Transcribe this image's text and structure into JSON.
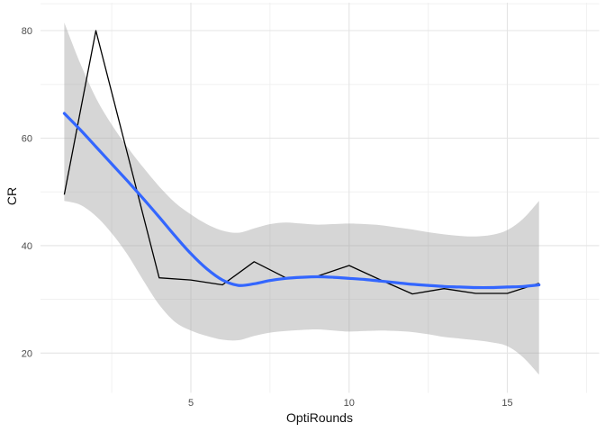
{
  "chart_data": {
    "type": "line",
    "title": "",
    "xlabel": "OptiRounds",
    "ylabel": "CR",
    "x": [
      1,
      2,
      3,
      4,
      5,
      6,
      7,
      8,
      9,
      10,
      11,
      12,
      13,
      14,
      15,
      16
    ],
    "series": [
      {
        "name": "observed-line",
        "color": "#000000",
        "width": 1.3,
        "smooth": false,
        "values": [
          49.5,
          80,
          57,
          34,
          33.6,
          32.7,
          37,
          34,
          34.3,
          36.3,
          33.6,
          31,
          32,
          31.1,
          31.1,
          33
        ]
      },
      {
        "name": "loess-smooth-line",
        "color": "#3366FF",
        "width": 3.2,
        "smooth": true,
        "points": [
          [
            1,
            64.6
          ],
          [
            1.5,
            61.6
          ],
          [
            2,
            58.4
          ],
          [
            2.5,
            55.2
          ],
          [
            3,
            52.0
          ],
          [
            3.5,
            48.7
          ],
          [
            4,
            45.3
          ],
          [
            4.5,
            41.8
          ],
          [
            5,
            38.5
          ],
          [
            5.5,
            35.7
          ],
          [
            6,
            33.6
          ],
          [
            6.5,
            32.6
          ],
          [
            7,
            32.9
          ],
          [
            7.5,
            33.5
          ],
          [
            8,
            33.9
          ],
          [
            8.5,
            34.1
          ],
          [
            9,
            34.2
          ],
          [
            9.5,
            34.1
          ],
          [
            10,
            33.9
          ],
          [
            10.5,
            33.7
          ],
          [
            11,
            33.4
          ],
          [
            11.5,
            33.1
          ],
          [
            12,
            32.8
          ],
          [
            12.5,
            32.6
          ],
          [
            13,
            32.4
          ],
          [
            13.5,
            32.3
          ],
          [
            14,
            32.2
          ],
          [
            14.5,
            32.2
          ],
          [
            15,
            32.3
          ],
          [
            15.5,
            32.4
          ],
          [
            16,
            32.7
          ]
        ]
      }
    ],
    "ribbon": {
      "name": "confidence-band",
      "fill": "#999999",
      "opacity": 0.4,
      "upper": [
        [
          1,
          81.5
        ],
        [
          1.5,
          74.0
        ],
        [
          2,
          67.5
        ],
        [
          2.5,
          62.5
        ],
        [
          3,
          58.3
        ],
        [
          3.5,
          54.5
        ],
        [
          4,
          51.0
        ],
        [
          4.5,
          48.0
        ],
        [
          5,
          45.8
        ],
        [
          5.5,
          44.0
        ],
        [
          6,
          42.8
        ],
        [
          6.5,
          42.4
        ],
        [
          7,
          43.2
        ],
        [
          7.5,
          44.0
        ],
        [
          8,
          44.3
        ],
        [
          8.5,
          44.1
        ],
        [
          9,
          43.9
        ],
        [
          9.5,
          44.0
        ],
        [
          10,
          44.1
        ],
        [
          10.5,
          44.0
        ],
        [
          11,
          43.8
        ],
        [
          11.5,
          43.4
        ],
        [
          12,
          43.0
        ],
        [
          12.5,
          42.5
        ],
        [
          13,
          42.1
        ],
        [
          13.5,
          41.8
        ],
        [
          14,
          41.7
        ],
        [
          14.5,
          42.0
        ],
        [
          15,
          42.9
        ],
        [
          15.5,
          45.0
        ],
        [
          16,
          48.3
        ]
      ],
      "lower": [
        [
          1,
          48.3
        ],
        [
          1.5,
          47.6
        ],
        [
          2,
          45.5
        ],
        [
          2.5,
          42.3
        ],
        [
          3,
          38.3
        ],
        [
          3.5,
          33.5
        ],
        [
          4,
          29.0
        ],
        [
          4.5,
          25.8
        ],
        [
          5,
          24.2
        ],
        [
          5.5,
          23.2
        ],
        [
          6,
          22.5
        ],
        [
          6.5,
          22.4
        ],
        [
          7,
          23.2
        ],
        [
          7.5,
          23.8
        ],
        [
          8,
          24.1
        ],
        [
          8.5,
          24.3
        ],
        [
          9,
          24.4
        ],
        [
          9.5,
          24.2
        ],
        [
          10,
          24.0
        ],
        [
          10.5,
          24.1
        ],
        [
          11,
          24.2
        ],
        [
          11.5,
          24.1
        ],
        [
          12,
          23.9
        ],
        [
          12.5,
          23.5
        ],
        [
          13,
          23.0
        ],
        [
          13.5,
          22.7
        ],
        [
          14,
          22.4
        ],
        [
          14.5,
          22.0
        ],
        [
          15,
          21.3
        ],
        [
          15.5,
          19.2
        ],
        [
          16,
          16.0
        ]
      ]
    },
    "axes": {
      "x_tick_labels": [
        "5",
        "10",
        "15"
      ],
      "x_ticks": [
        5,
        10,
        15
      ],
      "x_minor": [
        2.5,
        7.5,
        12.5,
        17.5
      ],
      "x_range": [
        0.25,
        17.9
      ],
      "y_tick_labels": [
        "20",
        "40",
        "60",
        "80"
      ],
      "y_ticks": [
        20,
        40,
        60,
        80
      ],
      "y_minor": [
        30,
        50,
        70,
        85
      ],
      "y_range": [
        12.6,
        85.2
      ],
      "grid": true,
      "legend": "none"
    },
    "colors": {
      "background": "#FFFFFF",
      "grid_major": "#E4E4E4",
      "grid_minor": "#EFEFEF",
      "tick_label": "#4D4D4D",
      "axis_title": "#111111"
    }
  }
}
